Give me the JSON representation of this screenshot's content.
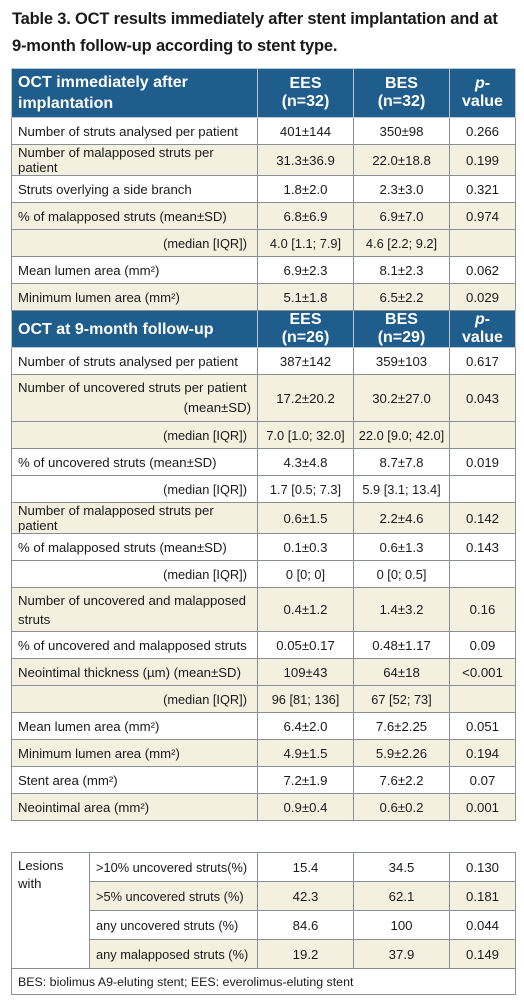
{
  "caption": {
    "line1": "Table 3. OCT results immediately after stent implantation and at",
    "line2": "9-month follow-up according to stent type."
  },
  "section1": {
    "header": {
      "label_line1": "OCT immediately after",
      "label_line2": "implantation",
      "col1": "EES (n=32)",
      "col2": "BES (n=32)",
      "col3_italic": "p",
      "col3_rest": "-value"
    },
    "rows": [
      {
        "label": "Number of struts analysed per patient",
        "ees": "401±144",
        "bes": "350±98",
        "p": "0.266"
      },
      {
        "label": "Number of malapposed struts per patient",
        "ees": "31.3±36.9",
        "bes": "22.0±18.8",
        "p": "0.199"
      },
      {
        "label": "Struts overlying a side branch",
        "ees": "1.8±2.0",
        "bes": "2.3±3.0",
        "p": "0.321"
      },
      {
        "label": "% of malapposed struts (mean±SD)",
        "ees": "6.8±6.9",
        "bes": "6.9±7.0",
        "p": "0.974"
      },
      {
        "label": "(median [IQR])",
        "ees": "4.0 [1.1; 7.9]",
        "bes": "4.6 [2.2; 9.2]",
        "p": ""
      },
      {
        "label": "Mean lumen area (mm²)",
        "ees": "6.9±2.3",
        "bes": "8.1±2.3",
        "p": "0.062"
      },
      {
        "label": "Minimum lumen area (mm²)",
        "ees": "5.1±1.8",
        "bes": "6.5±2.2",
        "p": "0.029"
      }
    ]
  },
  "section2": {
    "header": {
      "label": "OCT at 9-month follow-up",
      "col1": "EES (n=26)",
      "col2": "BES (n=29)",
      "col3_italic": "p",
      "col3_rest": "-value"
    },
    "rows": [
      {
        "label": "Number of struts analysed per patient",
        "ees": "387±142",
        "bes": "359±103",
        "p": "0.617"
      },
      {
        "label_line1": "Number of uncovered struts per patient",
        "label_line2": "(mean±SD)",
        "ees": "17.2±20.2",
        "bes": "30.2±27.0",
        "p": "0.043"
      },
      {
        "label": "(median [IQR])",
        "ees": "7.0 [1.0; 32.0]",
        "bes": "22.0 [9.0; 42.0]",
        "p": ""
      },
      {
        "label": "% of uncovered struts (mean±SD)",
        "ees": "4.3±4.8",
        "bes": "8.7±7.8",
        "p": "0.019"
      },
      {
        "label": "(median [IQR])",
        "ees": "1.7 [0.5; 7.3]",
        "bes": "5.9 [3.1; 13.4]",
        "p": ""
      },
      {
        "label": "Number of malapposed struts per patient",
        "ees": "0.6±1.5",
        "bes": "2.2±4.6",
        "p": "0.142"
      },
      {
        "label": "% of malapposed struts (mean±SD)",
        "ees": "0.1±0.3",
        "bes": "0.6±1.3",
        "p": "0.143"
      },
      {
        "label": "(median [IQR])",
        "ees": "0 [0; 0]",
        "bes": "0 [0; 0.5]",
        "p": ""
      },
      {
        "label_line1": "Number of uncovered and malapposed",
        "label_line2": "struts",
        "ees": "0.4±1.2",
        "bes": "1.4±3.2",
        "p": "0.16"
      },
      {
        "label": "% of uncovered and malapposed struts",
        "ees": "0.05±0.17",
        "bes": "0.48±1.17",
        "p": "0.09"
      },
      {
        "label": "Neointimal thickness (µm) (mean±SD)",
        "ees": "109±43",
        "bes": "64±18",
        "p": "<0.001"
      },
      {
        "label": "(median [IQR])",
        "ees": "96 [81; 136]",
        "bes": "67 [52; 73]",
        "p": ""
      },
      {
        "label": "Mean lumen area (mm²)",
        "ees": "6.4±2.0",
        "bes": "7.6±2.25",
        "p": "0.051"
      },
      {
        "label": "Minimum lumen area (mm²)",
        "ees": "4.9±1.5",
        "bes": "5.9±2.26",
        "p": "0.194"
      },
      {
        "label": "Stent area (mm²)",
        "ees": "7.2±1.9",
        "bes": "7.6±2.2",
        "p": "0.07"
      },
      {
        "label": "Neointimal area (mm²)",
        "ees": "0.9±0.4",
        "bes": "0.6±0.2",
        "p": "0.001"
      }
    ],
    "lesions": {
      "group_line1": "Lesions",
      "group_line2": "with",
      "rows": [
        {
          "label": ">10% uncovered struts(%)",
          "ees": "15.4",
          "bes": "34.5",
          "p": "0.130"
        },
        {
          "label": ">5% uncovered struts (%)",
          "ees": "42.3",
          "bes": "62.1",
          "p": "0.181"
        },
        {
          "label": "any uncovered struts (%)",
          "ees": "84.6",
          "bes": "100",
          "p": "0.044"
        },
        {
          "label": "any malapposed struts (%)",
          "ees": "19.2",
          "bes": "37.9",
          "p": "0.149"
        }
      ]
    }
  },
  "footnote": "BES: biolimus A9-eluting stent; EES: everolimus-eluting stent",
  "colors": {
    "header_bg": "#1f5d8c",
    "alt_row_bg": "#f3f0e0",
    "border": "#8a8f96"
  }
}
